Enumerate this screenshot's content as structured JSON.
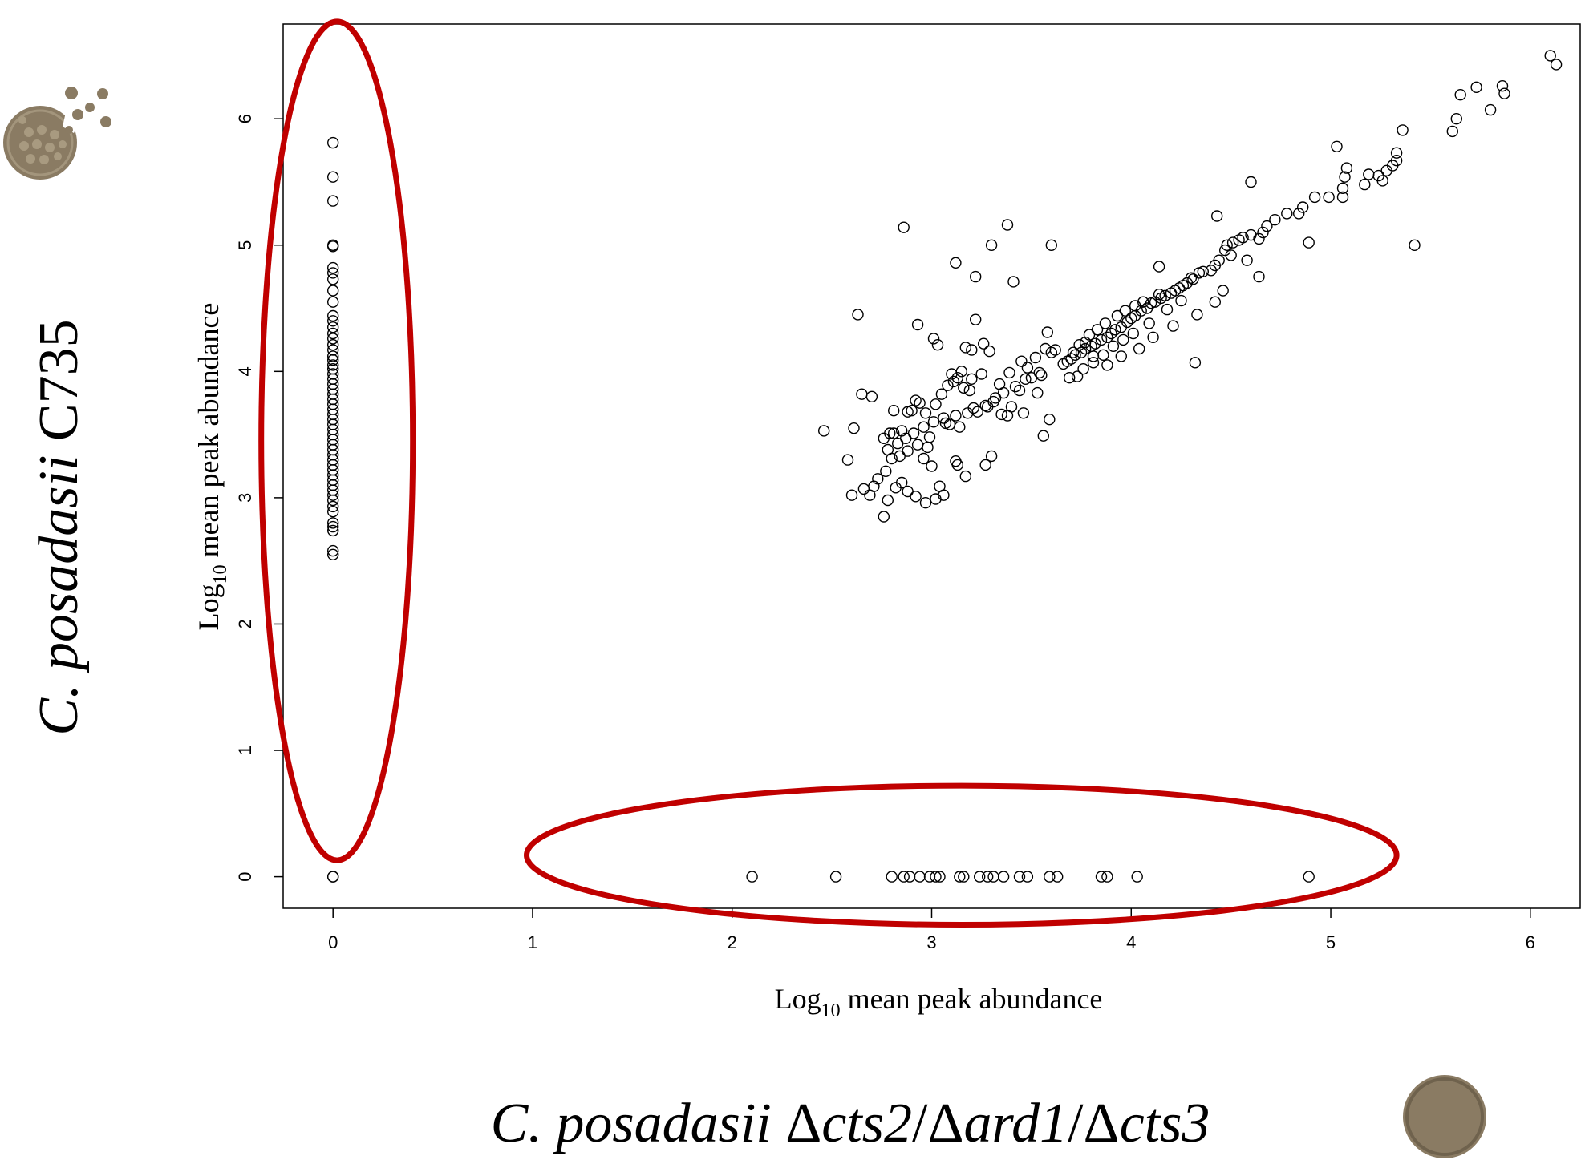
{
  "strain_labels": {
    "y_strain": "C. posadasii C735",
    "y_strain_italic": "C. posadasii",
    "y_strain_plain": " C735",
    "x_strain": "C. posadasii Δcts2/Δard1/Δcts3",
    "x_strain_prefix": "C. posadasii",
    "x_strain_parts": [
      "Δ",
      "cts2",
      "/Δ",
      "ard1",
      "/Δ",
      "cts3"
    ]
  },
  "icons": {
    "spherule_icon": "ruptured-spherule-icon",
    "colony_icon": "mycelial-colony-icon"
  },
  "colors": {
    "highlight": "#c00000",
    "icon": "#8a7b63",
    "icon_dark": "#6f624d",
    "points": "#000000"
  },
  "chart_data": {
    "type": "scatter",
    "xlabel": "Log10 mean peak abundance",
    "xlabel_base": "Log",
    "xlabel_sub": "10",
    "xlabel_rest": " mean peak abundance",
    "ylabel": "Log10 mean peak abundance",
    "ylabel_base": "Log",
    "ylabel_sub": "10",
    "ylabel_rest": " mean peak abundance",
    "xlim": [
      -0.25,
      6.25
    ],
    "ylim": [
      -0.25,
      6.75
    ],
    "xticks": [
      0,
      1,
      2,
      3,
      4,
      5,
      6
    ],
    "yticks": [
      0,
      1,
      2,
      3,
      4,
      5,
      6
    ],
    "grid": false,
    "highlights": [
      {
        "name": "present-only-in-C735",
        "cx": 0.02,
        "cy": 3.45,
        "rx": 0.38,
        "ry": 3.32
      },
      {
        "name": "present-only-in-mutant",
        "cx": 3.15,
        "cy": 0.17,
        "rx": 2.18,
        "ry": 0.55
      }
    ],
    "series": [
      {
        "points_x0": [
          [
            0,
            5.81
          ],
          [
            0,
            5.54
          ],
          [
            0,
            5.35
          ],
          [
            0,
            5.0
          ],
          [
            0,
            4.99
          ],
          [
            0,
            4.82
          ],
          [
            0,
            4.78
          ],
          [
            0,
            4.73
          ],
          [
            0,
            4.64
          ],
          [
            0,
            4.55
          ],
          [
            0,
            4.44
          ],
          [
            0,
            4.4
          ],
          [
            0,
            4.35
          ],
          [
            0,
            4.3
          ],
          [
            0,
            4.26
          ],
          [
            0,
            4.21
          ],
          [
            0,
            4.17
          ],
          [
            0,
            4.12
          ],
          [
            0,
            4.09
          ],
          [
            0,
            4.05
          ],
          [
            0,
            4.02
          ],
          [
            0,
            3.98
          ],
          [
            0,
            3.94
          ],
          [
            0,
            3.9
          ],
          [
            0,
            3.86
          ],
          [
            0,
            3.82
          ],
          [
            0,
            3.78
          ],
          [
            0,
            3.74
          ],
          [
            0,
            3.7
          ],
          [
            0,
            3.66
          ],
          [
            0,
            3.62
          ],
          [
            0,
            3.58
          ],
          [
            0,
            3.54
          ],
          [
            0,
            3.5
          ],
          [
            0,
            3.46
          ],
          [
            0,
            3.42
          ],
          [
            0,
            3.38
          ],
          [
            0,
            3.34
          ],
          [
            0,
            3.3
          ],
          [
            0,
            3.26
          ],
          [
            0,
            3.22
          ],
          [
            0,
            3.18
          ],
          [
            0,
            3.14
          ],
          [
            0,
            3.1
          ],
          [
            0,
            3.06
          ],
          [
            0,
            3.02
          ],
          [
            0,
            2.98
          ],
          [
            0,
            2.93
          ],
          [
            0,
            2.89
          ],
          [
            0,
            2.8
          ],
          [
            0,
            2.77
          ],
          [
            0,
            2.74
          ],
          [
            0,
            2.58
          ],
          [
            0,
            2.55
          ],
          [
            0,
            0.0
          ],
          [
            0,
            0.0
          ]
        ],
        "points_y0": [
          [
            2.1,
            0
          ],
          [
            2.52,
            0
          ],
          [
            2.8,
            0
          ],
          [
            2.86,
            0
          ],
          [
            2.89,
            0
          ],
          [
            2.94,
            0
          ],
          [
            2.99,
            0
          ],
          [
            3.02,
            0
          ],
          [
            3.04,
            0
          ],
          [
            3.14,
            0
          ],
          [
            3.16,
            0
          ],
          [
            3.24,
            0
          ],
          [
            3.28,
            0
          ],
          [
            3.31,
            0
          ],
          [
            3.36,
            0
          ],
          [
            3.44,
            0
          ],
          [
            3.48,
            0
          ],
          [
            3.59,
            0
          ],
          [
            3.63,
            0
          ],
          [
            3.85,
            0
          ],
          [
            3.88,
            0
          ],
          [
            4.03,
            0
          ],
          [
            4.89,
            0
          ]
        ],
        "points_both": [
          [
            6.1,
            6.5
          ],
          [
            6.13,
            6.43
          ],
          [
            5.86,
            6.26
          ],
          [
            5.87,
            6.2
          ],
          [
            5.73,
            6.25
          ],
          [
            5.65,
            6.19
          ],
          [
            5.63,
            6.0
          ],
          [
            5.61,
            5.9
          ],
          [
            5.8,
            6.07
          ],
          [
            5.36,
            5.91
          ],
          [
            5.33,
            5.73
          ],
          [
            5.33,
            5.67
          ],
          [
            5.31,
            5.63
          ],
          [
            5.28,
            5.59
          ],
          [
            5.26,
            5.51
          ],
          [
            5.24,
            5.55
          ],
          [
            5.19,
            5.56
          ],
          [
            5.03,
            5.78
          ],
          [
            5.08,
            5.61
          ],
          [
            5.07,
            5.54
          ],
          [
            5.06,
            5.45
          ],
          [
            5.06,
            5.38
          ],
          [
            5.17,
            5.48
          ],
          [
            4.92,
            5.38
          ],
          [
            4.86,
            5.3
          ],
          [
            4.84,
            5.25
          ],
          [
            4.78,
            5.25
          ],
          [
            4.72,
            5.2
          ],
          [
            4.68,
            5.15
          ],
          [
            4.66,
            5.1
          ],
          [
            4.64,
            5.05
          ],
          [
            4.6,
            5.08
          ],
          [
            4.56,
            5.06
          ],
          [
            4.54,
            5.04
          ],
          [
            4.51,
            5.02
          ],
          [
            4.48,
            5.0
          ],
          [
            4.47,
            4.96
          ],
          [
            4.5,
            4.92
          ],
          [
            4.44,
            4.88
          ],
          [
            4.42,
            4.84
          ],
          [
            4.4,
            4.8
          ],
          [
            4.34,
            4.78
          ],
          [
            4.3,
            4.74
          ],
          [
            4.28,
            4.7
          ],
          [
            4.24,
            4.66
          ],
          [
            4.2,
            4.62
          ],
          [
            4.17,
            4.6
          ],
          [
            4.15,
            4.58
          ],
          [
            4.12,
            4.55
          ],
          [
            4.1,
            4.54
          ],
          [
            4.08,
            4.5
          ],
          [
            4.05,
            4.48
          ],
          [
            4.02,
            4.44
          ],
          [
            4.0,
            4.42
          ],
          [
            3.98,
            4.39
          ],
          [
            3.95,
            4.35
          ],
          [
            3.92,
            4.33
          ],
          [
            3.9,
            4.3
          ],
          [
            3.88,
            4.27
          ],
          [
            3.85,
            4.25
          ],
          [
            3.82,
            4.22
          ],
          [
            3.8,
            4.2
          ],
          [
            3.77,
            4.18
          ],
          [
            3.75,
            4.15
          ],
          [
            3.72,
            4.13
          ],
          [
            3.7,
            4.1
          ],
          [
            3.68,
            4.08
          ],
          [
            3.66,
            4.06
          ],
          [
            3.71,
            4.15
          ],
          [
            3.74,
            4.21
          ],
          [
            3.79,
            4.29
          ],
          [
            3.83,
            4.33
          ],
          [
            3.87,
            4.38
          ],
          [
            3.93,
            4.44
          ],
          [
            3.97,
            4.48
          ],
          [
            4.02,
            4.52
          ],
          [
            4.06,
            4.55
          ],
          [
            4.14,
            4.61
          ],
          [
            4.22,
            4.64
          ],
          [
            4.26,
            4.68
          ],
          [
            4.31,
            4.73
          ],
          [
            4.36,
            4.79
          ],
          [
            4.14,
            4.83
          ],
          [
            4.43,
            5.23
          ],
          [
            4.58,
            4.88
          ],
          [
            4.64,
            4.75
          ],
          [
            4.46,
            4.64
          ],
          [
            4.32,
            4.07
          ],
          [
            4.25,
            4.56
          ],
          [
            4.18,
            4.49
          ],
          [
            4.09,
            4.38
          ],
          [
            4.01,
            4.3
          ],
          [
            3.96,
            4.25
          ],
          [
            3.91,
            4.2
          ],
          [
            3.86,
            4.13
          ],
          [
            3.81,
            4.07
          ],
          [
            3.76,
            4.02
          ],
          [
            3.73,
            3.96
          ],
          [
            3.69,
            3.95
          ],
          [
            4.6,
            5.5
          ],
          [
            4.89,
            5.02
          ],
          [
            4.99,
            5.38
          ],
          [
            5.42,
            5.0
          ],
          [
            4.42,
            4.55
          ],
          [
            4.33,
            4.45
          ],
          [
            4.21,
            4.36
          ],
          [
            4.11,
            4.27
          ],
          [
            4.04,
            4.18
          ],
          [
            3.95,
            4.12
          ],
          [
            3.88,
            4.05
          ],
          [
            3.81,
            4.12
          ],
          [
            3.77,
            4.23
          ],
          [
            3.6,
            5.0
          ],
          [
            3.38,
            5.16
          ],
          [
            3.3,
            5.0
          ],
          [
            3.12,
            4.86
          ],
          [
            3.22,
            4.75
          ],
          [
            3.41,
            4.71
          ],
          [
            2.86,
            5.14
          ],
          [
            2.63,
            4.45
          ],
          [
            2.93,
            4.37
          ],
          [
            3.01,
            4.26
          ],
          [
            3.03,
            4.21
          ],
          [
            3.17,
            4.19
          ],
          [
            3.22,
            4.41
          ],
          [
            3.2,
            4.17
          ],
          [
            3.26,
            4.22
          ],
          [
            3.29,
            4.16
          ],
          [
            3.1,
            3.98
          ],
          [
            3.15,
            4.0
          ],
          [
            3.13,
            3.95
          ],
          [
            3.2,
            3.94
          ],
          [
            3.25,
            3.98
          ],
          [
            3.34,
            3.9
          ],
          [
            3.39,
            3.99
          ],
          [
            3.45,
            4.08
          ],
          [
            3.48,
            4.03
          ],
          [
            3.52,
            4.11
          ],
          [
            3.54,
            3.99
          ],
          [
            3.57,
            4.18
          ],
          [
            3.58,
            4.31
          ],
          [
            3.6,
            4.15
          ],
          [
            3.62,
            4.17
          ],
          [
            3.55,
            3.97
          ],
          [
            3.47,
            3.94
          ],
          [
            3.42,
            3.88
          ],
          [
            3.36,
            3.83
          ],
          [
            3.32,
            3.79
          ],
          [
            3.27,
            3.73
          ],
          [
            3.23,
            3.68
          ],
          [
            3.18,
            3.67
          ],
          [
            3.12,
            3.65
          ],
          [
            3.06,
            3.63
          ],
          [
            3.01,
            3.6
          ],
          [
            2.96,
            3.56
          ],
          [
            2.91,
            3.51
          ],
          [
            2.87,
            3.47
          ],
          [
            2.83,
            3.43
          ],
          [
            2.78,
            3.38
          ],
          [
            2.76,
            3.47
          ],
          [
            2.81,
            3.51
          ],
          [
            2.85,
            3.53
          ],
          [
            2.9,
            3.69
          ],
          [
            2.94,
            3.75
          ],
          [
            2.97,
            3.67
          ],
          [
            3.02,
            3.74
          ],
          [
            3.05,
            3.82
          ],
          [
            3.08,
            3.89
          ],
          [
            3.11,
            3.92
          ],
          [
            3.16,
            3.87
          ],
          [
            3.19,
            3.85
          ],
          [
            3.28,
            3.72
          ],
          [
            3.31,
            3.76
          ],
          [
            3.35,
            3.66
          ],
          [
            3.4,
            3.72
          ],
          [
            3.44,
            3.85
          ],
          [
            3.5,
            3.95
          ],
          [
            3.53,
            3.83
          ],
          [
            3.59,
            3.62
          ],
          [
            3.56,
            3.49
          ],
          [
            3.46,
            3.67
          ],
          [
            3.38,
            3.65
          ],
          [
            3.21,
            3.71
          ],
          [
            3.14,
            3.56
          ],
          [
            3.07,
            3.59
          ],
          [
            2.99,
            3.48
          ],
          [
            2.93,
            3.42
          ],
          [
            2.88,
            3.37
          ],
          [
            2.84,
            3.33
          ],
          [
            2.8,
            3.31
          ],
          [
            2.77,
            3.21
          ],
          [
            2.73,
            3.15
          ],
          [
            2.71,
            3.09
          ],
          [
            2.69,
            3.02
          ],
          [
            2.66,
            3.07
          ],
          [
            2.6,
            3.02
          ],
          [
            2.58,
            3.3
          ],
          [
            2.61,
            3.55
          ],
          [
            2.46,
            3.53
          ],
          [
            2.76,
            2.85
          ],
          [
            2.78,
            2.98
          ],
          [
            2.82,
            3.08
          ],
          [
            2.85,
            3.12
          ],
          [
            2.88,
            3.05
          ],
          [
            2.92,
            3.01
          ],
          [
            2.97,
            2.96
          ],
          [
            3.02,
            2.99
          ],
          [
            3.06,
            3.02
          ],
          [
            3.04,
            3.09
          ],
          [
            3.0,
            3.25
          ],
          [
            2.96,
            3.31
          ],
          [
            2.98,
            3.4
          ],
          [
            3.12,
            3.29
          ],
          [
            3.13,
            3.26
          ],
          [
            3.17,
            3.17
          ],
          [
            3.27,
            3.26
          ],
          [
            3.3,
            3.33
          ],
          [
            3.09,
            3.58
          ],
          [
            2.79,
            3.51
          ],
          [
            2.81,
            3.69
          ],
          [
            2.88,
            3.68
          ],
          [
            2.92,
            3.77
          ],
          [
            2.7,
            3.8
          ],
          [
            2.65,
            3.82
          ]
        ]
      }
    ]
  }
}
